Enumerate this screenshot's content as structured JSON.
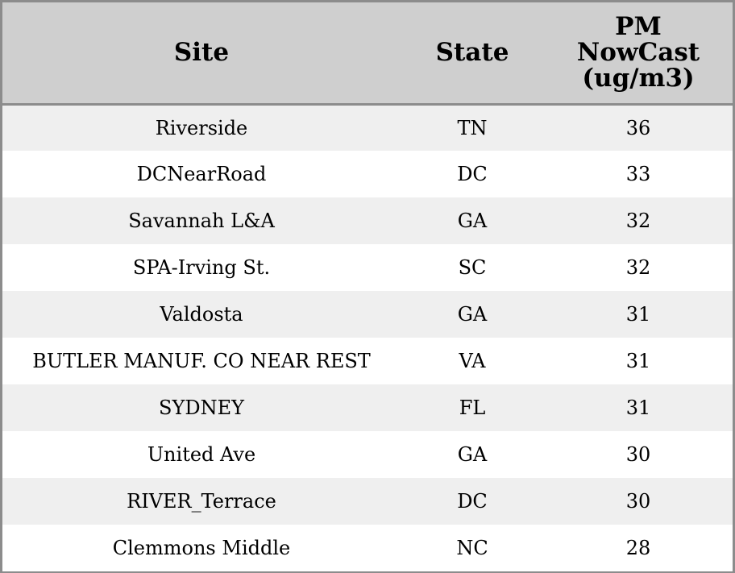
{
  "table": {
    "headers": {
      "site": "Site",
      "state": "State",
      "pm_line1": "PM",
      "pm_line2": "NowCast",
      "pm_line3": "(ug/m3)"
    },
    "rows": [
      {
        "site": "Riverside",
        "state": "TN",
        "pm": "36"
      },
      {
        "site": "DCNearRoad",
        "state": "DC",
        "pm": "33"
      },
      {
        "site": "Savannah L&A",
        "state": "GA",
        "pm": "32"
      },
      {
        "site": "SPA-Irving St.",
        "state": "SC",
        "pm": "32"
      },
      {
        "site": "Valdosta",
        "state": "GA",
        "pm": "31"
      },
      {
        "site": "BUTLER MANUF. CO NEAR REST",
        "state": "VA",
        "pm": "31"
      },
      {
        "site": "SYDNEY",
        "state": "FL",
        "pm": "31"
      },
      {
        "site": "United Ave",
        "state": "GA",
        "pm": "30"
      },
      {
        "site": "RIVER_Terrace",
        "state": "DC",
        "pm": "30"
      },
      {
        "site": "Clemmons Middle",
        "state": "NC",
        "pm": "28"
      }
    ]
  },
  "colors": {
    "header_bg": "#cfcfcf",
    "row_alt_bg": "#efefef",
    "row_bg": "#ffffff",
    "border": "#8c8c8c"
  }
}
